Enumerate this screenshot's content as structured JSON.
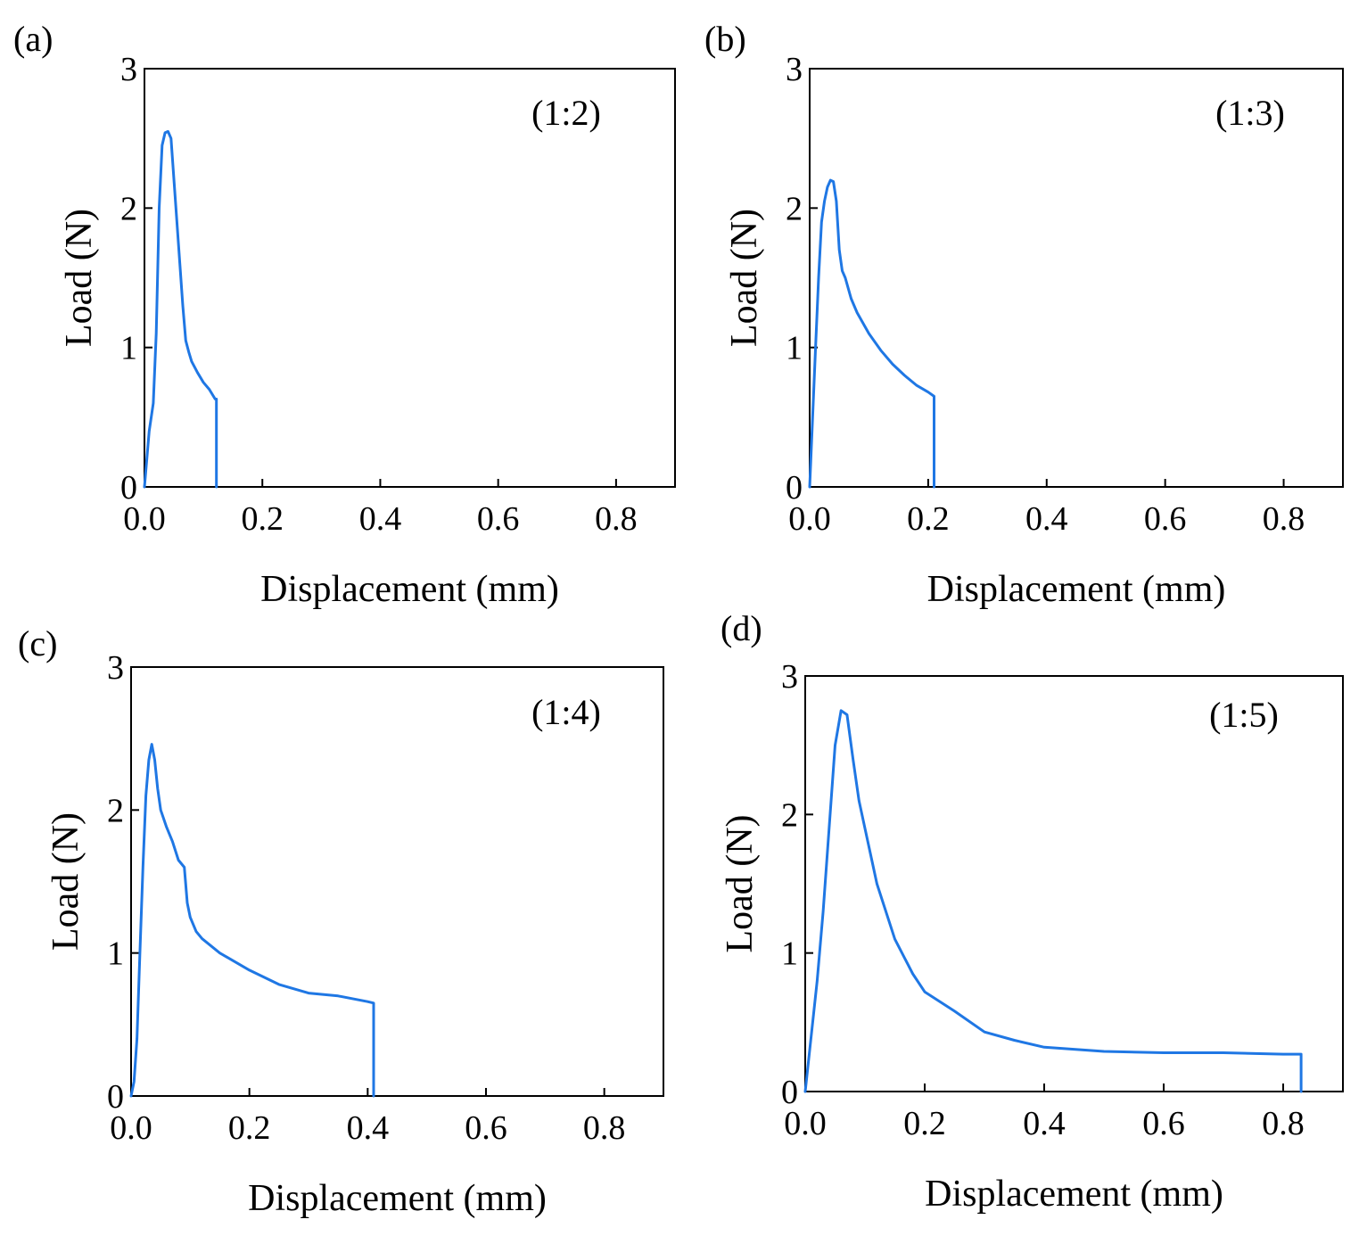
{
  "colors": {
    "series": "#1f77e4",
    "axis": "#000000"
  },
  "chart_data": [
    {
      "type": "line",
      "panel_label": "(a)",
      "annotation": "(1:2)",
      "xlabel": "Displacement (mm)",
      "ylabel": "Load (N)",
      "xlim": [
        0,
        0.9
      ],
      "ylim": [
        0,
        3
      ],
      "xticks": [
        0.0,
        0.2,
        0.4,
        0.6,
        0.8
      ],
      "xtick_labels": [
        "0.0",
        "0.2",
        "0.4",
        "0.6",
        "0.8"
      ],
      "yticks": [
        0,
        1,
        2,
        3
      ],
      "ytick_labels": [
        "0",
        "1",
        "2",
        "3"
      ],
      "series": [
        {
          "name": "(1:2)",
          "x": [
            0,
            0.008,
            0.015,
            0.02,
            0.025,
            0.03,
            0.035,
            0.04,
            0.045,
            0.05,
            0.055,
            0.06,
            0.065,
            0.07,
            0.075,
            0.08,
            0.09,
            0.1,
            0.11,
            0.12,
            0.122,
            0.122
          ],
          "y": [
            0,
            0.4,
            0.6,
            1.1,
            2.0,
            2.45,
            2.54,
            2.55,
            2.5,
            2.2,
            1.9,
            1.6,
            1.3,
            1.05,
            0.97,
            0.9,
            0.82,
            0.75,
            0.7,
            0.63,
            0.63,
            0
          ]
        }
      ]
    },
    {
      "type": "line",
      "panel_label": "(b)",
      "annotation": "(1:3)",
      "xlabel": "Displacement (mm)",
      "ylabel": "Load (N)",
      "xlim": [
        0,
        0.9
      ],
      "ylim": [
        0,
        3
      ],
      "xticks": [
        0.0,
        0.2,
        0.4,
        0.6,
        0.8
      ],
      "xtick_labels": [
        "0.0",
        "0.2",
        "0.4",
        "0.6",
        "0.8"
      ],
      "yticks": [
        0,
        1,
        2,
        3
      ],
      "ytick_labels": [
        "0",
        "1",
        "2",
        "3"
      ],
      "series": [
        {
          "name": "(1:3)",
          "x": [
            0,
            0.005,
            0.01,
            0.015,
            0.02,
            0.025,
            0.03,
            0.035,
            0.04,
            0.045,
            0.05,
            0.055,
            0.06,
            0.07,
            0.08,
            0.1,
            0.12,
            0.14,
            0.16,
            0.18,
            0.2,
            0.21,
            0.21
          ],
          "y": [
            0,
            0.5,
            1.0,
            1.5,
            1.9,
            2.05,
            2.15,
            2.2,
            2.19,
            2.05,
            1.7,
            1.55,
            1.5,
            1.35,
            1.25,
            1.1,
            0.98,
            0.88,
            0.8,
            0.73,
            0.68,
            0.65,
            0
          ]
        }
      ]
    },
    {
      "type": "line",
      "panel_label": "(c)",
      "annotation": "(1:4)",
      "xlabel": "Displacement (mm)",
      "ylabel": "Load (N)",
      "xlim": [
        0,
        0.9
      ],
      "ylim": [
        0,
        3
      ],
      "xticks": [
        0.0,
        0.2,
        0.4,
        0.6,
        0.8
      ],
      "xtick_labels": [
        "0.0",
        "0.2",
        "0.4",
        "0.6",
        "0.8"
      ],
      "yticks": [
        0,
        1,
        2,
        3
      ],
      "ytick_labels": [
        "0",
        "1",
        "2",
        "3"
      ],
      "series": [
        {
          "name": "(1:4)",
          "x": [
            0,
            0.005,
            0.01,
            0.015,
            0.02,
            0.025,
            0.03,
            0.035,
            0.04,
            0.045,
            0.05,
            0.06,
            0.07,
            0.08,
            0.09,
            0.095,
            0.1,
            0.11,
            0.12,
            0.15,
            0.2,
            0.25,
            0.3,
            0.35,
            0.4,
            0.41,
            0.41
          ],
          "y": [
            0,
            0.1,
            0.4,
            1.0,
            1.6,
            2.1,
            2.35,
            2.46,
            2.35,
            2.15,
            2.0,
            1.88,
            1.78,
            1.65,
            1.6,
            1.35,
            1.25,
            1.15,
            1.1,
            1.0,
            0.88,
            0.78,
            0.72,
            0.7,
            0.66,
            0.65,
            0
          ]
        }
      ]
    },
    {
      "type": "line",
      "panel_label": "(d)",
      "annotation": "(1:5)",
      "xlabel": "Displacement (mm)",
      "ylabel": "Load (N)",
      "xlim": [
        0,
        0.9
      ],
      "ylim": [
        0,
        3
      ],
      "xticks": [
        0.0,
        0.2,
        0.4,
        0.6,
        0.8
      ],
      "xtick_labels": [
        "0.0",
        "0.2",
        "0.4",
        "0.6",
        "0.8"
      ],
      "yticks": [
        0,
        1,
        2,
        3
      ],
      "ytick_labels": [
        "0",
        "1",
        "2",
        "3"
      ],
      "series": [
        {
          "name": "(1:5)",
          "x": [
            0,
            0.01,
            0.02,
            0.03,
            0.04,
            0.05,
            0.06,
            0.07,
            0.08,
            0.09,
            0.1,
            0.12,
            0.15,
            0.18,
            0.2,
            0.25,
            0.3,
            0.35,
            0.4,
            0.5,
            0.6,
            0.7,
            0.8,
            0.83,
            0.83
          ],
          "y": [
            0,
            0.4,
            0.8,
            1.3,
            1.9,
            2.5,
            2.75,
            2.72,
            2.4,
            2.1,
            1.9,
            1.5,
            1.1,
            0.85,
            0.72,
            0.58,
            0.43,
            0.37,
            0.32,
            0.29,
            0.28,
            0.28,
            0.27,
            0.27,
            0
          ]
        }
      ]
    }
  ]
}
